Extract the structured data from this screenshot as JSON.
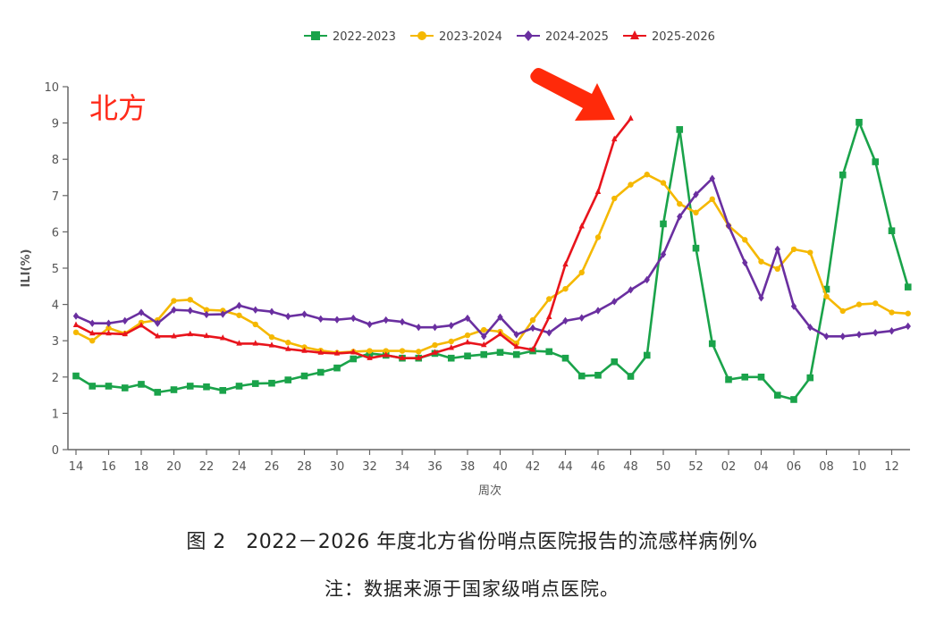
{
  "figure": {
    "region_label": "北方",
    "caption_title": "图 2　2022－2026 年度北方省份哨点医院报告的流感样病例%",
    "caption_note": "注：数据来源于国家级哨点医院。"
  },
  "chart_data": {
    "type": "line",
    "title": "2022－2026 年度北方省份哨点医院报告的流感样病例%",
    "xlabel": "周次",
    "ylabel": "ILI(%)",
    "ylim": [
      0,
      10
    ],
    "yticks": [
      0,
      1,
      2,
      3,
      4,
      5,
      6,
      7,
      8,
      9,
      10
    ],
    "grid": false,
    "legend_position": "top",
    "x": [
      "14",
      "15",
      "16",
      "17",
      "18",
      "19",
      "20",
      "21",
      "22",
      "23",
      "24",
      "25",
      "26",
      "27",
      "28",
      "29",
      "30",
      "31",
      "32",
      "33",
      "34",
      "35",
      "36",
      "37",
      "38",
      "39",
      "40",
      "41",
      "42",
      "43",
      "44",
      "45",
      "46",
      "47",
      "48",
      "49",
      "50",
      "51",
      "52",
      "01",
      "02",
      "03",
      "04",
      "05",
      "06",
      "07",
      "08",
      "09",
      "10",
      "11",
      "12",
      "13"
    ],
    "xtick_labels": [
      "14",
      "16",
      "18",
      "20",
      "22",
      "24",
      "26",
      "28",
      "30",
      "32",
      "34",
      "36",
      "38",
      "40",
      "42",
      "44",
      "46",
      "48",
      "50",
      "52",
      "02",
      "04",
      "06",
      "08",
      "10",
      "12"
    ],
    "series": [
      {
        "name": "2022-2023",
        "color": "#1aa34a",
        "marker": "square",
        "values": [
          2.03,
          1.75,
          1.75,
          1.7,
          1.8,
          1.58,
          1.65,
          1.75,
          1.73,
          1.63,
          1.75,
          1.82,
          1.83,
          1.92,
          2.03,
          2.13,
          2.25,
          2.5,
          2.65,
          2.6,
          2.52,
          2.52,
          2.65,
          2.52,
          2.58,
          2.62,
          2.68,
          2.62,
          2.72,
          2.7,
          2.52,
          2.03,
          2.05,
          2.42,
          2.02,
          2.6,
          6.22,
          8.82,
          5.55,
          2.92,
          1.93,
          2.0,
          2.0,
          1.5,
          1.38,
          1.98,
          4.42,
          7.57,
          9.02,
          7.93,
          6.03,
          4.48
        ]
      },
      {
        "name": "2023-2024",
        "color": "#f5b800",
        "marker": "circle",
        "values": [
          3.23,
          3.0,
          3.35,
          3.2,
          3.5,
          3.57,
          4.1,
          4.13,
          3.85,
          3.83,
          3.7,
          3.45,
          3.1,
          2.95,
          2.82,
          2.73,
          2.67,
          2.7,
          2.72,
          2.72,
          2.72,
          2.7,
          2.88,
          2.98,
          3.15,
          3.3,
          3.25,
          2.93,
          3.57,
          4.15,
          4.43,
          4.88,
          5.85,
          6.92,
          7.3,
          7.58,
          7.35,
          6.77,
          6.53,
          6.9,
          6.17,
          5.78,
          5.18,
          4.98,
          5.52,
          5.43,
          4.22,
          3.82,
          4.0,
          4.03,
          3.78,
          3.75
        ]
      },
      {
        "name": "2024-2025",
        "color": "#6a2fa0",
        "marker": "diamond",
        "values": [
          3.68,
          3.48,
          3.48,
          3.55,
          3.78,
          3.48,
          3.85,
          3.83,
          3.72,
          3.73,
          3.97,
          3.85,
          3.8,
          3.67,
          3.73,
          3.6,
          3.58,
          3.62,
          3.45,
          3.57,
          3.52,
          3.37,
          3.37,
          3.42,
          3.62,
          3.12,
          3.65,
          3.17,
          3.35,
          3.22,
          3.55,
          3.63,
          3.83,
          4.08,
          4.4,
          4.68,
          5.38,
          6.42,
          7.03,
          7.47,
          6.17,
          5.15,
          4.18,
          5.52,
          3.95,
          3.37,
          3.12,
          3.12,
          3.17,
          3.22,
          3.27,
          3.4
        ]
      },
      {
        "name": "2025-2026",
        "color": "#e8141c",
        "marker": "triangle",
        "values": [
          3.43,
          3.2,
          3.2,
          3.18,
          3.42,
          3.12,
          3.12,
          3.18,
          3.13,
          3.07,
          2.92,
          2.92,
          2.87,
          2.77,
          2.72,
          2.67,
          2.65,
          2.68,
          2.52,
          2.6,
          2.52,
          2.52,
          2.67,
          2.8,
          2.95,
          2.88,
          3.18,
          2.83,
          2.75,
          3.65,
          5.1,
          6.15,
          7.1,
          8.55,
          9.12
        ]
      }
    ],
    "annotations": [
      {
        "type": "arrow",
        "color": "#ff2a0a",
        "points_to": "2025-2026 week 48 (9.12)"
      },
      {
        "type": "text",
        "text": "北方",
        "color": "#ff2a1a"
      }
    ]
  }
}
